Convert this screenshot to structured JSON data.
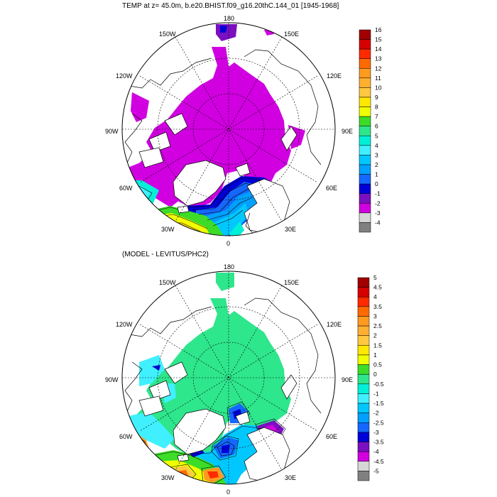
{
  "title_top": "TEMP at z=  45.0m, b.e20.BHIST.f09_g16.20thC.144_01 [1945-1968]",
  "title_bottom": "(MODEL - LEVITUS/PHC2)",
  "longitude_labels": {
    "n": "180",
    "nw150": "150W",
    "ne150": "150E",
    "w120": "120W",
    "e120": "120E",
    "w90": "90W",
    "e90": "90E",
    "w60": "60W",
    "e60": "60E",
    "w30": "30W",
    "e30": "30E",
    "s": "0"
  },
  "colorbar_top": {
    "labels": [
      "16",
      "15",
      "14",
      "13",
      "12",
      "11",
      "10",
      "9",
      "8",
      "7",
      "6",
      "5",
      "4",
      "3",
      "2",
      "1",
      "0",
      "-1",
      "-2",
      "-3",
      "-4"
    ],
    "colors": [
      "#a00000",
      "#d50000",
      "#ff2a00",
      "#ff6a00",
      "#ff9a20",
      "#ffb030",
      "#ffc840",
      "#ffe800",
      "#f0ff00",
      "#3cdc28",
      "#2ee68c",
      "#00f0d8",
      "#40f0ff",
      "#00c8ff",
      "#00a0ff",
      "#1468ff",
      "#0000d8",
      "#7a10c0",
      "#d000e0",
      "#d6d6d6",
      "#808080"
    ]
  },
  "colorbar_bottom": {
    "labels": [
      "5",
      "4.5",
      "4",
      "3.5",
      "3",
      "2.5",
      "2",
      "1.5",
      "1",
      "0.5",
      "0",
      "-0.5",
      "-1",
      "-1.5",
      "-2",
      "-2.5",
      "-3",
      "-3.5",
      "-4",
      "-4.5",
      "-5"
    ],
    "colors": [
      "#a00000",
      "#d50000",
      "#ff2a00",
      "#ff6a00",
      "#ff9a20",
      "#ffb030",
      "#ffc840",
      "#ffe800",
      "#f0ff00",
      "#3cdc28",
      "#2ee68c",
      "#00f0d8",
      "#40f0ff",
      "#00c8ff",
      "#00a0ff",
      "#1468ff",
      "#0000d8",
      "#7a10c0",
      "#d000e0",
      "#d6d6d6",
      "#808080"
    ]
  }
}
